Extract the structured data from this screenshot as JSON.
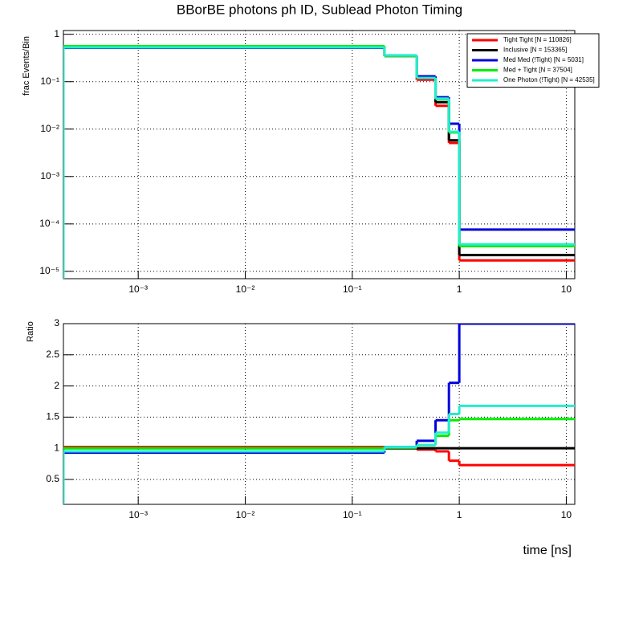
{
  "chart_data": [
    {
      "type": "step-histogram",
      "title": "BBorBE photons ph ID, Sublead Photon Timing",
      "ylabel": "frac Events/Bin",
      "xscale": "log",
      "yscale": "log",
      "grid": true,
      "legend": "top-right",
      "bins": [
        0.0002,
        0.2,
        0.4,
        0.6,
        0.8,
        1,
        12
      ],
      "xlim": [
        0.0002,
        12
      ],
      "xticks": [
        {
          "value": 0.001,
          "label": "10⁻³"
        },
        {
          "value": 0.01,
          "label": "10⁻²"
        },
        {
          "value": 0.1,
          "label": "10⁻¹"
        },
        1,
        10
      ],
      "ylim": [
        7e-06,
        1.2
      ],
      "yticks": [
        {
          "value": 1e-05,
          "label": "10⁻⁵"
        },
        {
          "value": 0.0001,
          "label": "10⁻⁴"
        },
        {
          "value": 0.001,
          "label": "10⁻³"
        },
        {
          "value": 0.01,
          "label": "10⁻²"
        },
        {
          "value": 0.1,
          "label": "10⁻¹"
        },
        1
      ],
      "series": [
        {
          "name": "Tight Tight [N = 110826]",
          "color": "#ff0000",
          "values": [
            0.56,
            0.35,
            0.11,
            0.031,
            0.0051,
            1.7e-05
          ]
        },
        {
          "name": "Inclusive [N = 153365]",
          "color": "#000000",
          "values": [
            0.55,
            0.35,
            0.12,
            0.037,
            0.0058,
            2.2e-05
          ]
        },
        {
          "name": "Med Med (!Tight) [N = 5031]",
          "color": "#0000dd",
          "values": [
            0.52,
            0.35,
            0.13,
            0.047,
            0.013,
            7.6e-05
          ]
        },
        {
          "name": "Med + Tight [N = 37504]",
          "color": "#00ee00",
          "values": [
            0.56,
            0.35,
            0.12,
            0.043,
            0.0085,
            3.4e-05
          ]
        },
        {
          "name": "One Photon (!Tight) [N = 42535]",
          "color": "#22eecc",
          "values": [
            0.53,
            0.36,
            0.12,
            0.044,
            0.0088,
            3.7e-05
          ]
        }
      ]
    },
    {
      "type": "step-histogram",
      "ylabel": "Ratio",
      "xlabel": "time [ns]",
      "xscale": "log",
      "yscale": "linear",
      "grid": true,
      "bins": [
        0.0002,
        0.2,
        0.4,
        0.6,
        0.8,
        1,
        12
      ],
      "xlim": [
        0.0002,
        12
      ],
      "xticks": [
        {
          "value": 0.001,
          "label": "10⁻³"
        },
        {
          "value": 0.01,
          "label": "10⁻²"
        },
        {
          "value": 0.1,
          "label": "10⁻¹"
        },
        1,
        10
      ],
      "ylim": [
        0.1,
        3
      ],
      "yticks": [
        0.5,
        1,
        1.5,
        2,
        2.5,
        3
      ],
      "series": [
        {
          "color": "#ff0000",
          "values": [
            1.02,
            1.0,
            0.98,
            0.95,
            0.8,
            0.73
          ]
        },
        {
          "color": "#000000",
          "values": [
            1,
            1,
            1,
            1,
            1,
            1
          ]
        },
        {
          "color": "#0000dd",
          "values": [
            0.93,
            1.02,
            1.12,
            1.45,
            2.05,
            3
          ]
        },
        {
          "color": "#00ee00",
          "values": [
            1.0,
            1.01,
            1.05,
            1.2,
            1.45,
            1.47
          ]
        },
        {
          "color": "#22eecc",
          "values": [
            0.95,
            1.02,
            1.05,
            1.25,
            1.55,
            1.68
          ]
        }
      ]
    }
  ]
}
